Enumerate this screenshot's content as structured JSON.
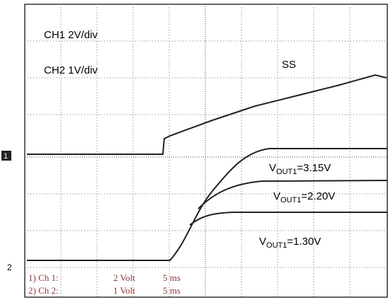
{
  "channel_labels": [
    "CH1 2V/div",
    "CH2 1V/div"
  ],
  "trace_label": "SS",
  "curve_labels": [
    {
      "prefix": "V",
      "sub": "OUT1",
      "value": "=3.15V"
    },
    {
      "prefix": "V",
      "sub": "OUT1",
      "value": "=2.20V"
    },
    {
      "prefix": "V",
      "sub": "OUT1",
      "value": "=1.30V"
    }
  ],
  "markers": [
    "1",
    "2"
  ],
  "settings": [
    {
      "channel": "1) Ch 1:",
      "scale": "2 Volt",
      "time": "5 ms"
    },
    {
      "channel": "2) Ch 2:",
      "scale": "1 Volt",
      "time": "5 ms"
    }
  ]
}
